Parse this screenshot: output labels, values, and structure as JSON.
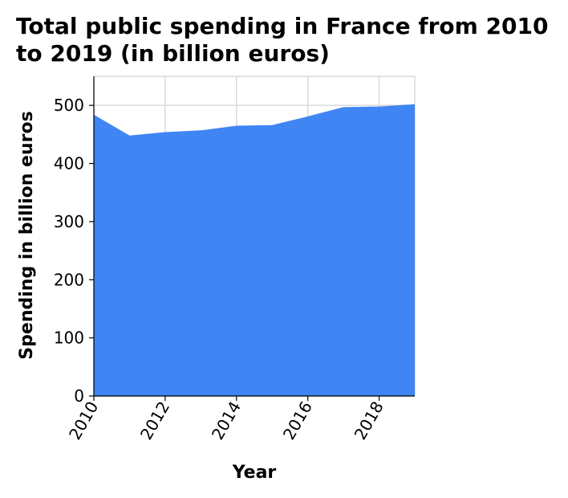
{
  "chart_data": {
    "type": "area",
    "title_lines": [
      "Total public spending in France from 2010",
      "to 2019 (in billion euros)"
    ],
    "xlabel": "Year",
    "ylabel": "Spending in billion euros",
    "x": [
      2010,
      2011,
      2012,
      2013,
      2014,
      2015,
      2016,
      2017,
      2018,
      2019
    ],
    "values": [
      484,
      448,
      454,
      457,
      465,
      466,
      481,
      497,
      498,
      502
    ],
    "xlim": [
      2010,
      2019
    ],
    "ylim": [
      0,
      550
    ],
    "xticks": [
      2010,
      2012,
      2014,
      2016,
      2018
    ],
    "yticks": [
      0,
      100,
      200,
      300,
      400,
      500
    ],
    "grid": true,
    "fill_color": "#3f85f3"
  }
}
